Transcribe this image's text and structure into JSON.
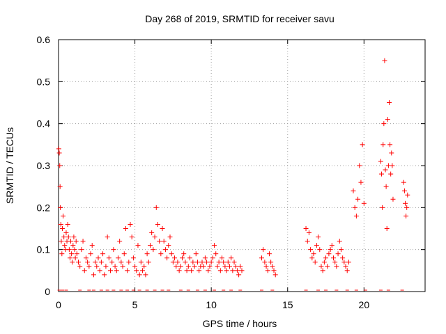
{
  "chart_data": {
    "type": "scatter",
    "title": "Day 268 of 2019, SRMTID for receiver savu",
    "xlabel": "GPS time / hours",
    "ylabel": "SRMTID / TECUs",
    "xlim": [
      0,
      24
    ],
    "ylim": [
      0,
      0.6
    ],
    "xticks": [
      0,
      5,
      10,
      15,
      20
    ],
    "yticks": [
      0,
      0.1,
      0.2,
      0.3,
      0.4,
      0.5,
      0.6
    ],
    "xtick_labels": [
      "0",
      "5",
      "10",
      "15",
      "20"
    ],
    "ytick_labels": [
      "0",
      "0.1",
      "0.2",
      "0.3",
      "0.4",
      "0.5",
      "0.6"
    ],
    "grid": true,
    "marker": "+",
    "color": "#ff0000",
    "series": [
      {
        "name": "SRMTID",
        "x": [
          0.02,
          0.05,
          0.08,
          0.1,
          0.12,
          0.15,
          0.18,
          0.22,
          0.25,
          0.3,
          0.35,
          0.4,
          0.45,
          0.5,
          0.55,
          0.6,
          0.65,
          0.7,
          0.75,
          0.8,
          0.85,
          0.9,
          0.95,
          1.0,
          1.05,
          1.1,
          1.15,
          1.2,
          1.3,
          1.4,
          1.5,
          1.6,
          1.7,
          1.8,
          1.9,
          2.0,
          2.1,
          2.2,
          2.3,
          2.4,
          2.5,
          2.6,
          2.7,
          2.8,
          2.9,
          3.0,
          3.1,
          3.2,
          3.3,
          3.4,
          3.5,
          3.6,
          3.7,
          3.8,
          3.9,
          4.0,
          4.1,
          4.2,
          4.3,
          4.4,
          4.5,
          4.6,
          4.7,
          4.8,
          4.9,
          5.0,
          5.1,
          5.2,
          5.3,
          5.4,
          5.5,
          5.6,
          5.7,
          5.8,
          5.9,
          6.0,
          6.1,
          6.2,
          6.3,
          6.4,
          6.5,
          6.6,
          6.7,
          6.8,
          6.9,
          7.0,
          7.1,
          7.2,
          7.3,
          7.4,
          7.5,
          7.6,
          7.7,
          7.8,
          7.9,
          8.0,
          8.1,
          8.2,
          8.3,
          8.4,
          8.5,
          8.6,
          8.7,
          8.8,
          8.9,
          9.0,
          9.1,
          9.2,
          9.3,
          9.4,
          9.5,
          9.6,
          9.7,
          9.8,
          9.9,
          10.0,
          10.1,
          10.2,
          10.3,
          10.4,
          10.5,
          10.6,
          10.7,
          10.8,
          10.9,
          11.0,
          11.1,
          11.2,
          11.3,
          11.4,
          11.5,
          11.6,
          11.7,
          11.8,
          11.9,
          12.0,
          13.3,
          13.4,
          13.5,
          13.6,
          13.7,
          13.8,
          13.9,
          14.0,
          14.1,
          14.2,
          16.2,
          16.3,
          16.4,
          16.5,
          16.6,
          16.7,
          16.8,
          16.9,
          17.0,
          17.1,
          17.2,
          17.3,
          17.4,
          17.5,
          17.6,
          17.7,
          17.8,
          17.9,
          18.0,
          18.1,
          18.2,
          18.3,
          18.4,
          18.5,
          18.6,
          18.7,
          18.8,
          18.9,
          19.0,
          19.3,
          19.4,
          19.5,
          19.6,
          19.7,
          19.8,
          19.9,
          20.0,
          21.1,
          21.15,
          21.2,
          21.25,
          21.3,
          21.35,
          21.4,
          21.45,
          21.5,
          21.55,
          21.6,
          21.65,
          21.7,
          21.75,
          21.8,
          21.85,
          21.9,
          22.6,
          22.65,
          22.7,
          22.75,
          22.8,
          22.85
        ],
        "y": [
          0.34,
          0.33,
          0.3,
          0.25,
          0.2,
          0.16,
          0.12,
          0.09,
          0.15,
          0.18,
          0.13,
          0.11,
          0.1,
          0.14,
          0.12,
          0.16,
          0.13,
          0.1,
          0.08,
          0.12,
          0.09,
          0.07,
          0.11,
          0.13,
          0.1,
          0.08,
          0.12,
          0.09,
          0.07,
          0.06,
          0.1,
          0.12,
          0.05,
          0.08,
          0.07,
          0.06,
          0.09,
          0.11,
          0.04,
          0.07,
          0.06,
          0.08,
          0.05,
          0.07,
          0.09,
          0.04,
          0.06,
          0.13,
          0.08,
          0.05,
          0.07,
          0.1,
          0.06,
          0.05,
          0.08,
          0.12,
          0.07,
          0.06,
          0.09,
          0.15,
          0.05,
          0.07,
          0.16,
          0.13,
          0.08,
          0.06,
          0.05,
          0.11,
          0.04,
          0.07,
          0.05,
          0.06,
          0.04,
          0.09,
          0.07,
          0.11,
          0.14,
          0.1,
          0.13,
          0.2,
          0.16,
          0.12,
          0.09,
          0.15,
          0.12,
          0.1,
          0.08,
          0.11,
          0.13,
          0.09,
          0.07,
          0.08,
          0.06,
          0.07,
          0.05,
          0.06,
          0.08,
          0.09,
          0.07,
          0.05,
          0.06,
          0.08,
          0.05,
          0.07,
          0.06,
          0.09,
          0.07,
          0.05,
          0.06,
          0.07,
          0.06,
          0.08,
          0.07,
          0.05,
          0.06,
          0.07,
          0.08,
          0.11,
          0.09,
          0.06,
          0.07,
          0.05,
          0.08,
          0.07,
          0.06,
          0.05,
          0.07,
          0.06,
          0.08,
          0.05,
          0.07,
          0.06,
          0.05,
          0.04,
          0.06,
          0.05,
          0.08,
          0.1,
          0.07,
          0.06,
          0.05,
          0.09,
          0.07,
          0.06,
          0.05,
          0.04,
          0.15,
          0.12,
          0.14,
          0.1,
          0.08,
          0.09,
          0.07,
          0.11,
          0.13,
          0.1,
          0.06,
          0.05,
          0.07,
          0.08,
          0.06,
          0.09,
          0.1,
          0.11,
          0.08,
          0.07,
          0.06,
          0.09,
          0.12,
          0.1,
          0.08,
          0.07,
          0.06,
          0.05,
          0.07,
          0.24,
          0.2,
          0.18,
          0.22,
          0.3,
          0.26,
          0.35,
          0.21,
          0.31,
          0.28,
          0.2,
          0.35,
          0.4,
          0.55,
          0.29,
          0.25,
          0.15,
          0.41,
          0.3,
          0.45,
          0.35,
          0.28,
          0.33,
          0.3,
          0.22,
          0.26,
          0.24,
          0.21,
          0.18,
          0.2,
          0.23
        ]
      }
    ],
    "baseline_marks_x": [
      0.05,
      0.25,
      0.5,
      1.4,
      2.0,
      2.3,
      2.8,
      3.2,
      3.6,
      4.1,
      4.5,
      4.9,
      5.3,
      5.8,
      6.3,
      6.8,
      7.2,
      8.0,
      8.5,
      9.1,
      9.6,
      10.2,
      10.8,
      11.3,
      11.9,
      13.3,
      14.0,
      16.2,
      17.0,
      17.5,
      18.2,
      18.9,
      19.5,
      20.1,
      21.1,
      21.6,
      22.5
    ]
  }
}
